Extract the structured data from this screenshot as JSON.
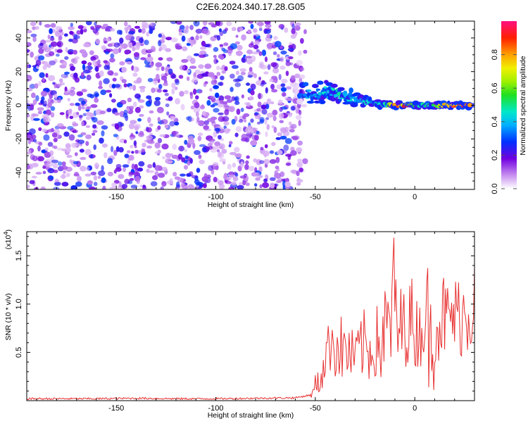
{
  "title": "C2E6.2024.340.17.28.G05",
  "chart_data": [
    {
      "type": "heatmap",
      "xlabel": "Height of straight line (km)",
      "ylabel": "Frequency (Hz)",
      "xlim": [
        -195,
        30
      ],
      "ylim": [
        -50,
        50
      ],
      "xticks": [
        -150,
        -100,
        -50,
        0
      ],
      "yticks": [
        -40,
        -20,
        0,
        20,
        40
      ],
      "colorbar": {
        "label": "Normalized spectral amplitude",
        "range": [
          0,
          1
        ],
        "ticks": [
          0.0,
          0.2,
          0.4,
          0.6,
          0.8
        ]
      },
      "noise_region": {
        "x": [
          -195,
          -55
        ],
        "y": [
          -50,
          50
        ],
        "amplitude": [
          0.05,
          0.3
        ]
      },
      "signal_track": [
        {
          "x": -58,
          "y": 7,
          "amp": 0.35
        },
        {
          "x": -50,
          "y": 7,
          "amp": 0.4
        },
        {
          "x": -45,
          "y": 8,
          "amp": 0.45
        },
        {
          "x": -40,
          "y": 7,
          "amp": 0.5
        },
        {
          "x": -35,
          "y": 6,
          "amp": 0.45
        },
        {
          "x": -30,
          "y": 4,
          "amp": 0.4
        },
        {
          "x": -25,
          "y": 2,
          "amp": 0.45
        },
        {
          "x": -20,
          "y": 1,
          "amp": 0.5
        },
        {
          "x": -15,
          "y": 0.5,
          "amp": 0.5
        },
        {
          "x": -10,
          "y": 0,
          "amp": 0.85
        },
        {
          "x": -5,
          "y": 0,
          "amp": 0.9
        },
        {
          "x": 0,
          "y": 0,
          "amp": 0.7
        },
        {
          "x": 5,
          "y": 0,
          "amp": 0.5
        },
        {
          "x": 10,
          "y": 0,
          "amp": 0.6
        },
        {
          "x": 15,
          "y": 0,
          "amp": 0.85
        },
        {
          "x": 20,
          "y": 0,
          "amp": 0.95
        },
        {
          "x": 25,
          "y": 0,
          "amp": 0.95
        },
        {
          "x": 28,
          "y": 0,
          "amp": 0.95
        }
      ]
    },
    {
      "type": "line",
      "xlabel": "Height of straight line (km)",
      "ylabel": "SNR (10 * v/v)",
      "yscale_label": "(x10",
      "yscale_exp": "4",
      "xlim": [
        -195,
        30
      ],
      "ylim": [
        0,
        1.75
      ],
      "xticks": [
        -150,
        -100,
        -50,
        0
      ],
      "yticks": [
        0.5,
        1.0,
        1.5
      ],
      "ytick_labels": [
        "0.5",
        "1.0",
        "1.5"
      ],
      "color": "#e83030",
      "series": [
        {
          "x": [
            -195,
            -180,
            -160,
            -140,
            -120,
            -100,
            -80,
            -60,
            -52,
            -50,
            -47,
            -45,
            -43,
            -42,
            -40,
            -38,
            -36,
            -34,
            -32,
            -30,
            -28,
            -26,
            -24,
            -22,
            -20,
            -18,
            -16,
            -14,
            -12,
            -11,
            -10,
            -9,
            -8,
            -6,
            -4,
            -2,
            0,
            2,
            4,
            6,
            7,
            8,
            10,
            12,
            14,
            16,
            18,
            20,
            22,
            24,
            26,
            28,
            30
          ],
          "y": [
            0.02,
            0.02,
            0.02,
            0.025,
            0.02,
            0.02,
            0.025,
            0.03,
            0.06,
            0.15,
            0.3,
            0.55,
            0.8,
            1.08,
            0.6,
            0.9,
            0.5,
            0.85,
            0.45,
            0.75,
            0.55,
            0.95,
            0.5,
            0.85,
            0.6,
            1.0,
            0.4,
            1.25,
            0.7,
            1.45,
            1.75,
            1.1,
            0.8,
            1.2,
            1.0,
            1.3,
            0.9,
            1.1,
            1.0,
            1.45,
            0.9,
            0.3,
            1.2,
            1.05,
            1.35,
            1.15,
            1.25,
            1.3,
            1.25,
            1.35,
            1.3,
            1.38,
            1.4
          ]
        }
      ]
    }
  ]
}
